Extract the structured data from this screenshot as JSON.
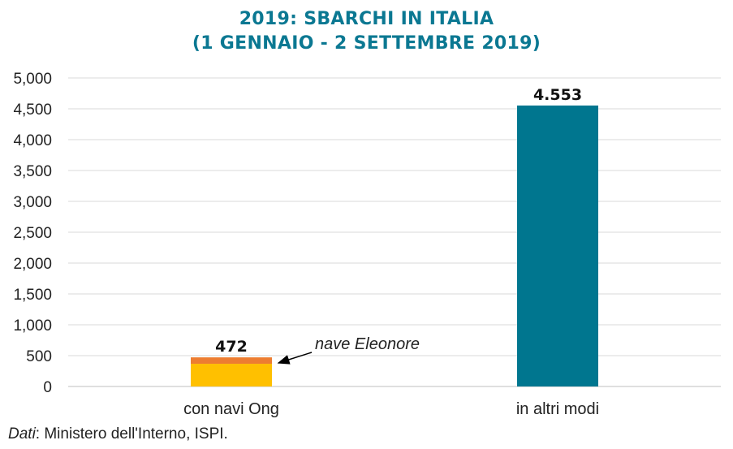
{
  "title_line1": "2019: SBARCHI IN ITALIA",
  "title_line2": "(1 GENNAIO - 2 SETTEMBRE 2019)",
  "source": {
    "prefix": "Dati",
    "text": ": Ministero dell'Interno, ISPI."
  },
  "annotation": {
    "text": "nave Eleonore"
  },
  "colors": {
    "title": "#0b7892",
    "ong_base": "#ffc000",
    "ong_eleonore": "#ed7d31",
    "altri": "#00768f",
    "grid": "#d9d9d9",
    "axis": "#bfbfbf",
    "text": "#222222"
  },
  "chart_data": {
    "type": "bar",
    "categories": [
      "con navi Ong",
      "in altri modi"
    ],
    "stacked": true,
    "series": [
      {
        "values": [
          368,
          4553
        ],
        "colors": [
          "#ffc000",
          "#00768f"
        ]
      },
      {
        "name": "nave Eleonore",
        "values": [
          104,
          0
        ],
        "colors": [
          "#ed7d31",
          "#00768f"
        ]
      }
    ],
    "totals": [
      472,
      4553
    ],
    "data_labels": [
      "472",
      "4.553"
    ],
    "yticks": [
      "5,000",
      "4,500",
      "4,000",
      "3,500",
      "3,000",
      "2,500",
      "2,000",
      "1,500",
      "1,000",
      "500",
      "0"
    ],
    "ylim": [
      0,
      5000
    ],
    "ystep": 500,
    "grid": true
  }
}
